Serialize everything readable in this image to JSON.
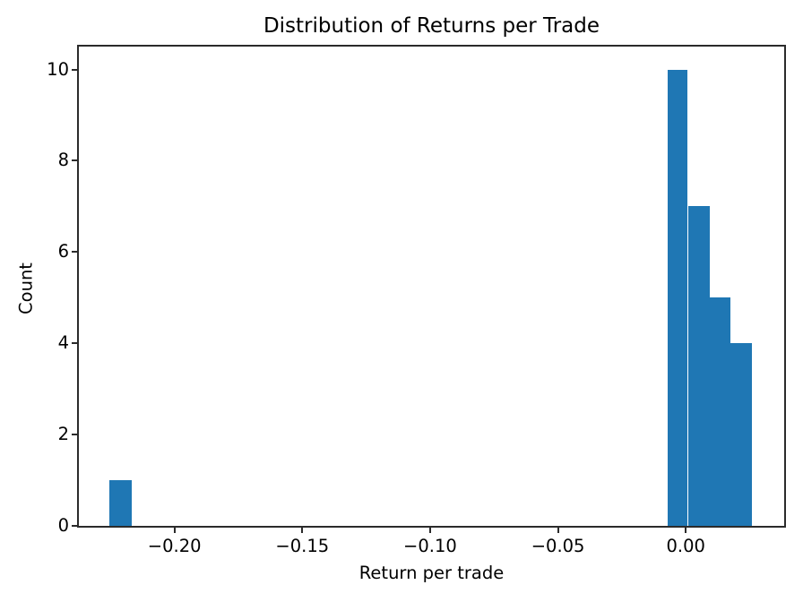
{
  "chart_data": {
    "type": "bar",
    "subtype": "histogram",
    "title": "Distribution of Returns per Trade",
    "xlabel": "Return per trade",
    "ylabel": "Count",
    "bar_color": "#1f77b4",
    "spine_color": "#2b2b2b",
    "background_color": "#ffffff",
    "grid": false,
    "legend": false,
    "xlim": [
      -0.2374,
      0.0385
    ],
    "ylim": [
      0,
      10.5
    ],
    "x_ticks": [
      -0.2,
      -0.15,
      -0.1,
      -0.05,
      0.0
    ],
    "x_tick_labels": [
      "−0.20",
      "−0.15",
      "−0.10",
      "−0.05",
      "0.00"
    ],
    "y_ticks": [
      0,
      2,
      4,
      6,
      8,
      10
    ],
    "y_tick_labels": [
      "0",
      "2",
      "4",
      "6",
      "8",
      "10"
    ],
    "bins": [
      {
        "start": -0.2255,
        "end": -0.2168,
        "count": 1
      },
      {
        "start": -0.007,
        "end": 0.0008,
        "count": 10
      },
      {
        "start": 0.0008,
        "end": 0.0092,
        "count": 7
      },
      {
        "start": 0.0092,
        "end": 0.0175,
        "count": 5
      },
      {
        "start": 0.0175,
        "end": 0.0259,
        "count": 4
      }
    ]
  }
}
